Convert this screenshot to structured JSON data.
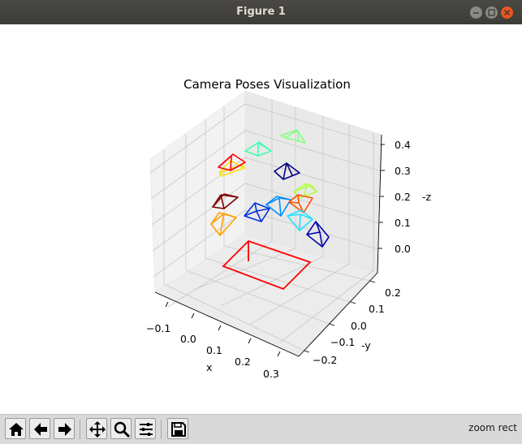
{
  "window": {
    "title": "Figure 1"
  },
  "plot": {
    "title": "Camera Poses Visualization",
    "xlabel": "x",
    "ylabel": "y",
    "zlabel": "z",
    "x_ticks": [
      "−0.1",
      "0.0",
      "0.1",
      "0.2",
      "0.3"
    ],
    "y_ticks": [
      "0.2",
      "0.1",
      "0.0",
      "−0.1",
      "−0.2"
    ],
    "z_ticks": [
      "0.4",
      "0.3",
      "0.2",
      "0.1",
      "0.0"
    ]
  },
  "toolbar": {
    "buttons": [
      "home-icon",
      "back-icon",
      "forward-icon",
      "pan-icon",
      "zoom-icon",
      "configure-subplots-icon",
      "save-icon"
    ],
    "message": "zoom rect"
  },
  "colors": {
    "reference_frame": "#ff0000",
    "camera_colors": [
      "#ff0000",
      "#ffe000",
      "#40ffb0",
      "#80ff80",
      "#000080",
      "#800000",
      "#ffa000",
      "#0030e0",
      "#0090ff",
      "#ff5000",
      "#b0ff40",
      "#20e0ff",
      "#0000b0"
    ]
  }
}
